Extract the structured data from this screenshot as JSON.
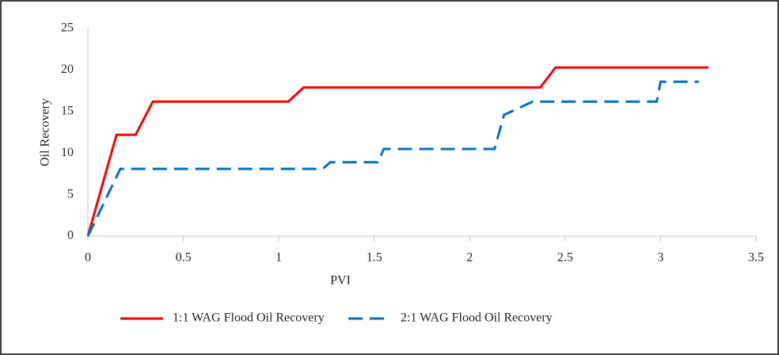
{
  "chart_data": {
    "type": "line",
    "xlabel": "PVI",
    "ylabel": "Oil Recovery",
    "xlim": [
      0,
      3.5
    ],
    "xticks": [
      0,
      0.5,
      1,
      1.5,
      2,
      2.5,
      3,
      3.5
    ],
    "ylim": [
      0,
      25
    ],
    "yticks": [
      0,
      5,
      10,
      15,
      20,
      25
    ],
    "grid": false,
    "legend": "bottom",
    "series": [
      {
        "name": "1:1 WAG Flood Oil Recovery",
        "color": "#ff0000",
        "dash": false,
        "x": [
          0,
          0.15,
          0.25,
          0.34,
          1.05,
          1.13,
          2.37,
          2.45,
          3.25
        ],
        "values": [
          0,
          12.2,
          12.2,
          16.2,
          16.2,
          17.9,
          17.9,
          20.3,
          20.3
        ]
      },
      {
        "name": "2:1 WAG Flood Oil Recovery",
        "color": "#0070c0",
        "dash": true,
        "x": [
          0,
          0.17,
          1.23,
          1.27,
          1.52,
          1.55,
          2.13,
          2.18,
          2.33,
          2.98,
          3.0,
          3.2
        ],
        "values": [
          0,
          8.1,
          8.1,
          8.9,
          8.9,
          10.5,
          10.5,
          14.6,
          16.2,
          16.2,
          18.6,
          18.6
        ]
      }
    ]
  }
}
